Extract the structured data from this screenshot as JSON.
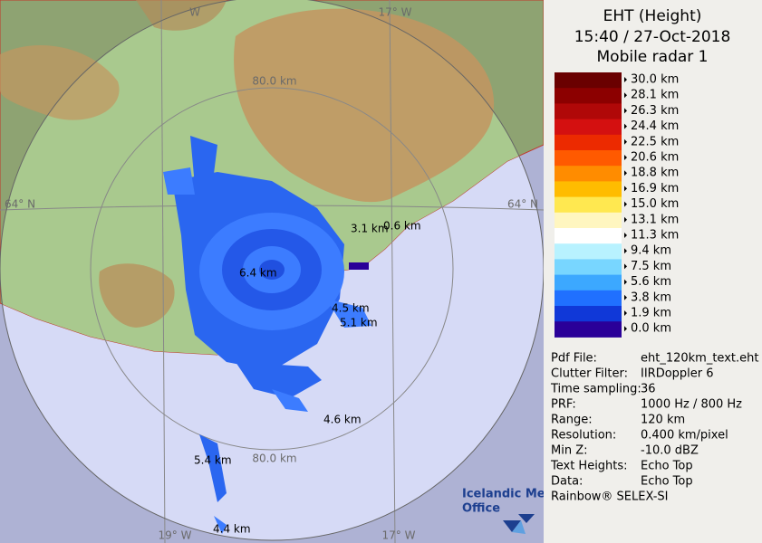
{
  "header": {
    "title": "EHT (Height)",
    "time": "15:40 / 27-Oct-2018",
    "radar": "Mobile radar 1"
  },
  "scale": {
    "labels": [
      "30.0 km",
      "28.1 km",
      "26.3 km",
      "24.4 km",
      "22.5 km",
      "20.6 km",
      "18.8 km",
      "16.9 km",
      "15.0 km",
      "13.1 km",
      "11.3 km",
      "9.4 km",
      "7.5 km",
      "5.6 km",
      "3.8 km",
      "1.9 km",
      "0.0 km"
    ],
    "colors": [
      "#6a0000",
      "#8c0000",
      "#b00808",
      "#d41010",
      "#ec2a00",
      "#ff5a00",
      "#ff8c00",
      "#ffbc00",
      "#ffe850",
      "#fff6c0",
      "#ffffff",
      "#b8f2ff",
      "#78d6ff",
      "#3ca8ff",
      "#2070ff",
      "#1038d8",
      "#2a0098"
    ]
  },
  "info": {
    "rows": [
      [
        "Pdf File:",
        "eht_120km_text.eht"
      ],
      [
        "Clutter Filter:",
        "IIRDoppler 6"
      ],
      [
        "Time sampling:",
        "36"
      ],
      [
        "PRF:",
        "1000 Hz / 800 Hz"
      ],
      [
        "Range:",
        "120 km"
      ],
      [
        "Resolution:",
        "0.400 km/pixel"
      ],
      [
        "Min Z:",
        "-10.0 dBZ"
      ],
      [
        "Text Heights:",
        "Echo Top"
      ],
      [
        "Data:",
        "Echo Top"
      ]
    ]
  },
  "footer": "Rainbow® SELEX-SI",
  "map": {
    "grid_labels": [
      "W",
      "17° W",
      "80.0 km",
      "64° N",
      "64° N",
      "80.0 km",
      "19° W",
      "17° W"
    ],
    "echo_tops": [
      "3.1 km",
      "0.6 km",
      "6.4 km",
      "4.5 km",
      "5.1 km",
      "4.6 km",
      "5.4 km",
      "4.4 km"
    ],
    "logo": [
      "Icelandic Met",
      "Office"
    ]
  }
}
